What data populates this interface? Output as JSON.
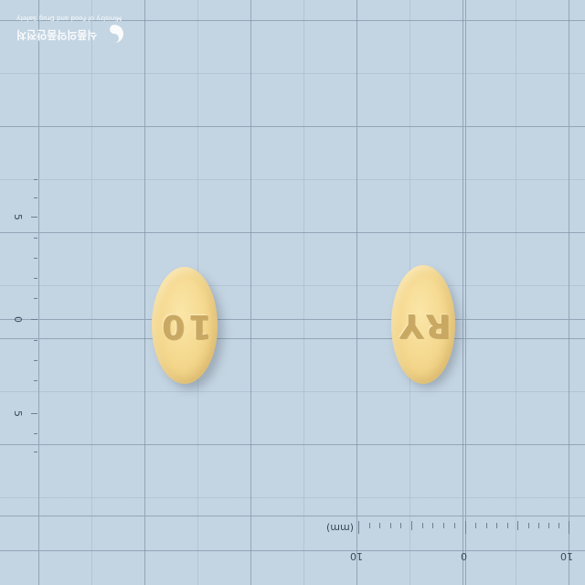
{
  "watermark": {
    "org_ko": "식품의약품안전처",
    "org_en": "Ministry of Food and Drug Safety",
    "icon": "mfds-logo-icon"
  },
  "scale_left": {
    "labels": [
      "5",
      "0",
      "5"
    ]
  },
  "scale_bottom": {
    "unit": "(mm)",
    "labels": [
      "10",
      "0",
      "10"
    ]
  },
  "pills": [
    {
      "imprint": "10",
      "color": "#f3d68b"
    },
    {
      "imprint": "RY",
      "color": "#f3d68b"
    }
  ]
}
